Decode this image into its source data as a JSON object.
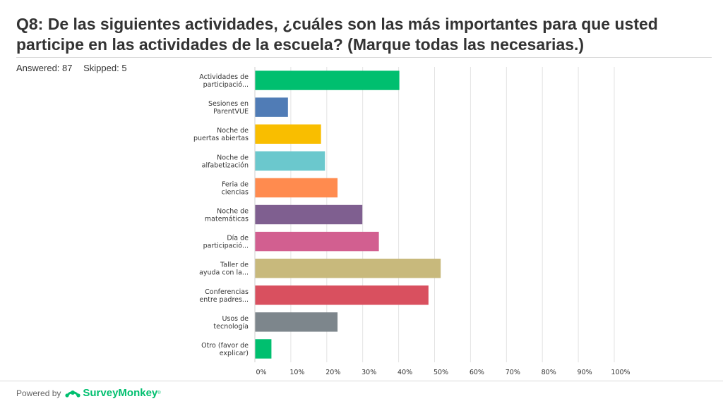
{
  "title": "Q8: De las siguientes actividades, ¿cuáles son las más importantes para que usted participe en las actividades de la escuela? (Marque todas las necesarias.)",
  "stats": {
    "answered": "Answered: 87",
    "skipped": "Skipped: 5"
  },
  "footer": {
    "powered_by": "Powered by",
    "brand": "SurveyMonkey",
    "tm": "®"
  },
  "chart_data": {
    "type": "bar",
    "orientation": "horizontal",
    "categories": [
      [
        "Actividades de",
        "participació..."
      ],
      [
        "Sesiones en",
        "ParentVUE"
      ],
      [
        "Noche de",
        "puertas abiertas"
      ],
      [
        "Noche de",
        "alfabetización"
      ],
      [
        "Feria de",
        "ciencias"
      ],
      [
        "Noche de",
        "matemáticas"
      ],
      [
        "Día de",
        "participació..."
      ],
      [
        "Taller de",
        "ayuda con la..."
      ],
      [
        "Conferencias",
        "entre padres..."
      ],
      [
        "Usos de",
        "tecnología"
      ],
      [
        "Otro (favor de",
        "explicar)"
      ]
    ],
    "values": [
      40.2,
      9.2,
      18.4,
      19.5,
      23.0,
      29.9,
      34.5,
      51.7,
      48.3,
      23.0,
      4.6
    ],
    "colors": [
      "#00bf6f",
      "#507cb6",
      "#f9be00",
      "#6bc8cd",
      "#ff8b4f",
      "#7f5f90",
      "#d25f90",
      "#c8b97c",
      "#d9505f",
      "#7d868c",
      "#00bf6f"
    ],
    "xticks": [
      "0%",
      "10%",
      "20%",
      "30%",
      "40%",
      "50%",
      "60%",
      "70%",
      "80%",
      "90%",
      "100%"
    ],
    "xlim": [
      0,
      100
    ],
    "grid": true,
    "xlabel": "",
    "ylabel": ""
  }
}
